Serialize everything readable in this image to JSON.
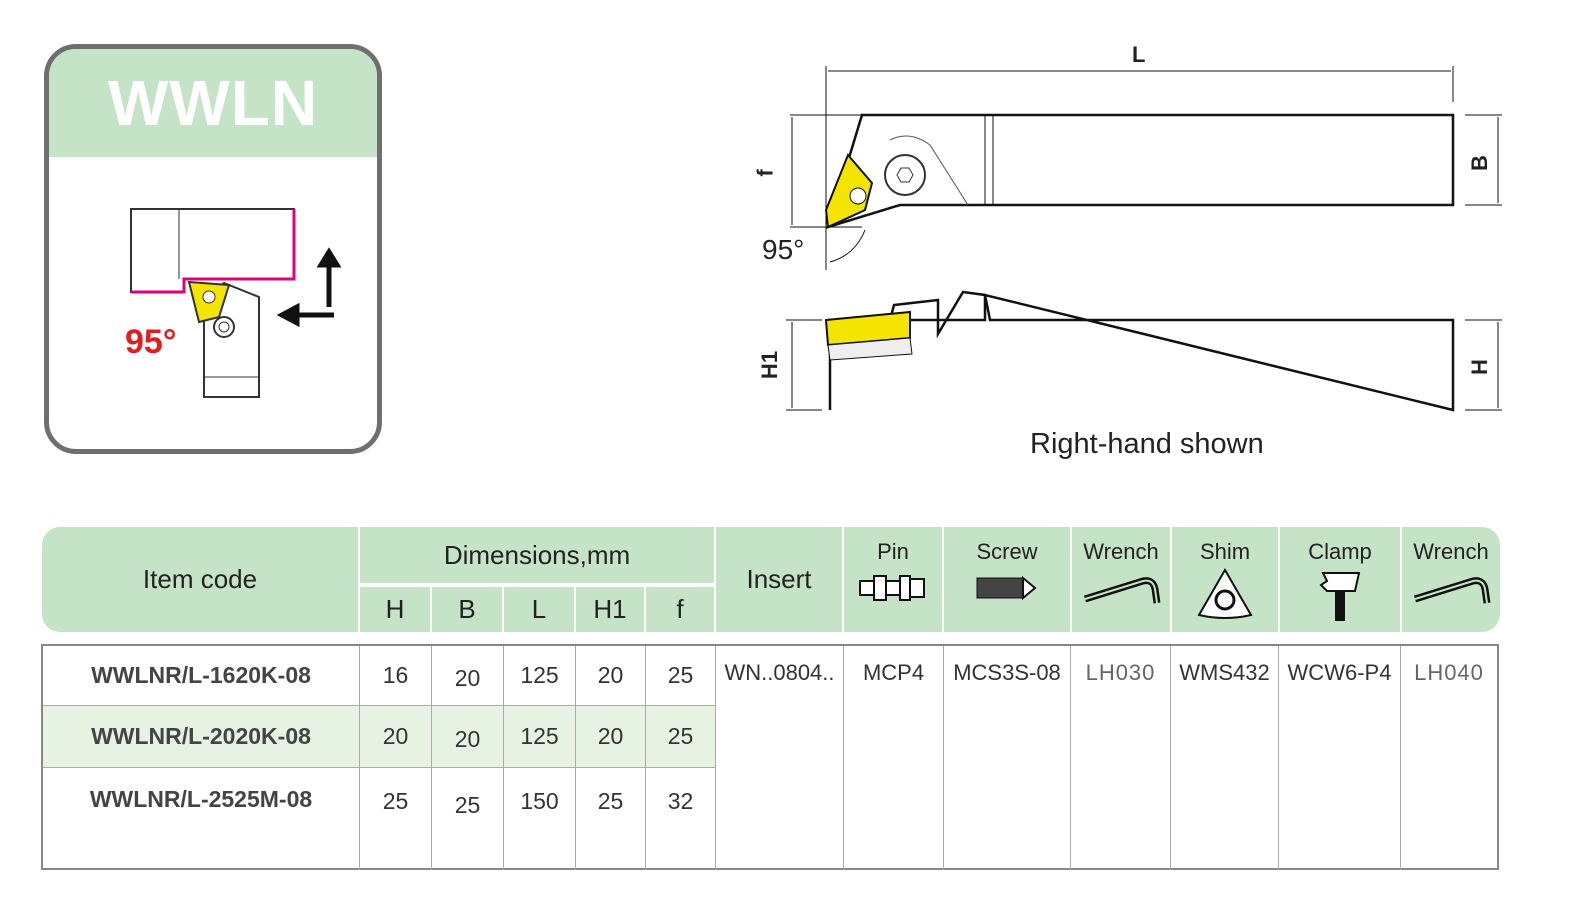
{
  "badge": {
    "title": "WWLN",
    "angle": "95°"
  },
  "drawing": {
    "dim_L": "L",
    "dim_f": "f",
    "dim_B": "B",
    "angle": "95°",
    "dim_H1": "H1",
    "dim_H": "H",
    "caption": "Right-hand shown"
  },
  "table": {
    "header": {
      "item_code": "Item code",
      "dimensions": "Dimensions,mm",
      "dims": [
        "H",
        "B",
        "L",
        "H1",
        "f"
      ],
      "insert": "Insert",
      "accessories": [
        {
          "label": "Pin",
          "icon": "pin-icon"
        },
        {
          "label": "Screw",
          "icon": "screw-icon"
        },
        {
          "label": "Wrench",
          "icon": "wrench-icon"
        },
        {
          "label": "Shim",
          "icon": "shim-icon"
        },
        {
          "label": "Clamp",
          "icon": "clamp-icon"
        },
        {
          "label": "Wrench",
          "icon": "wrench-icon"
        }
      ]
    },
    "rows": [
      {
        "code": "WWLNR/L-1620K-08",
        "H": "16",
        "B": "20",
        "L": "125",
        "H1": "20",
        "f": "25"
      },
      {
        "code": "WWLNR/L-2020K-08",
        "H": "20",
        "B": "20",
        "L": "125",
        "H1": "20",
        "f": "25"
      },
      {
        "code": "WWLNR/L-2525M-08",
        "H": "25",
        "B": "25",
        "L": "150",
        "H1": "25",
        "f": "32"
      }
    ],
    "shared": {
      "insert": "WN..0804..",
      "pin": "MCP4",
      "screw": "MCS3S-08",
      "wrench": "LH030",
      "shim": "WMS432",
      "clamp": "WCW6-P4",
      "wrench2": "LH040"
    }
  },
  "colors": {
    "header_green": "#c5e3c6",
    "row_alt": "#e6f2e2",
    "insert_yellow": "#f5e400",
    "workpiece_magenta": "#e0007a",
    "angle_red": "#e02020"
  }
}
